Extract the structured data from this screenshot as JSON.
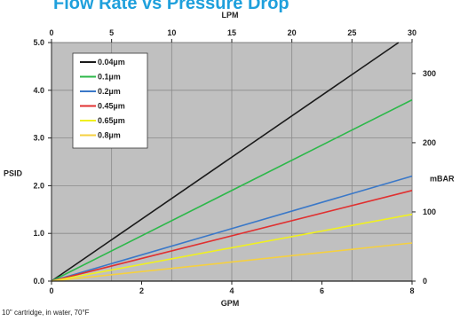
{
  "title": "Flow Rate vs Pressure Drop",
  "footnote": "10\" cartridge, in water, 70°F",
  "chart_data": {
    "type": "line",
    "xlabel": "GPM",
    "ylabel": "PSID",
    "x2label": "LPM",
    "y2label": "mBAR",
    "xlim": [
      0,
      8
    ],
    "ylim": [
      0,
      5
    ],
    "x2lim": [
      0,
      30
    ],
    "y2lim": [
      0,
      344.7
    ],
    "xticks": [
      "0",
      "2",
      "4",
      "6",
      "8"
    ],
    "yticks": [
      "0.0",
      "1.0",
      "2.0",
      "3.0",
      "4.0",
      "5.0"
    ],
    "x2ticks": [
      "0",
      "5",
      "10",
      "15",
      "20",
      "25",
      "30"
    ],
    "y2ticks": [
      "0",
      "100",
      "200",
      "300"
    ],
    "grid": true,
    "legend_position": "top-left",
    "plot_background": "#c0c0c0",
    "series": [
      {
        "name": "0.04µm",
        "color": "#1a1a1a",
        "x": [
          0,
          7.7
        ],
        "y": [
          0,
          5.0
        ]
      },
      {
        "name": "0.1µm",
        "color": "#2db84a",
        "x": [
          0,
          8
        ],
        "y": [
          0,
          3.8
        ]
      },
      {
        "name": "0.2µm",
        "color": "#3a78c8",
        "x": [
          0,
          8
        ],
        "y": [
          0,
          2.2
        ]
      },
      {
        "name": "0.45µm",
        "color": "#e03030",
        "x": [
          0,
          8
        ],
        "y": [
          0,
          1.9
        ]
      },
      {
        "name": "0.65µm",
        "color": "#f0f020",
        "x": [
          0,
          8
        ],
        "y": [
          0,
          1.4
        ]
      },
      {
        "name": "0.8µm",
        "color": "#f5d040",
        "x": [
          0,
          8
        ],
        "y": [
          0,
          0.8
        ]
      }
    ]
  }
}
